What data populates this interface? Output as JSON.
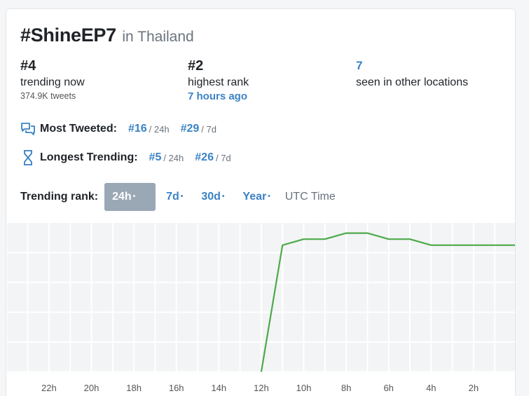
{
  "header": {
    "hashtag": "#ShineEP7",
    "location": "in Thailand"
  },
  "stats": {
    "current": {
      "value": "#4",
      "label": "trending now",
      "sub": "374.9K tweets"
    },
    "highest": {
      "value": "#2",
      "label": "highest rank",
      "sub": "7 hours ago"
    },
    "locations": {
      "value": "7",
      "label": "seen in other locations"
    }
  },
  "most_tweeted": {
    "label": "Most Tweeted:",
    "r24_value": "#16",
    "r24_period": "/ 24h",
    "r7_value": "#29",
    "r7_period": "/ 7d"
  },
  "longest_trending": {
    "label": "Longest Trending:",
    "r24_value": "#5",
    "r24_period": "/ 24h",
    "r7_value": "#26",
    "r7_period": "/ 7d"
  },
  "range": {
    "label": "Trending rank:",
    "options": [
      "24h",
      "7d",
      "30d",
      "Year"
    ],
    "selected": "24h",
    "utc_label": "UTC Time"
  },
  "icons": {
    "most_tweeted": "chat-bubbles-icon",
    "longest_trending": "hourglass-icon"
  },
  "colors": {
    "accent": "#3b82c4",
    "line": "#4caa4c",
    "active_range": "#9aa8b6"
  },
  "chart_data": {
    "type": "line",
    "x_tick_labels": [
      "22h",
      "20h",
      "18h",
      "16h",
      "14h",
      "12h",
      "10h",
      "8h",
      "6h",
      "4h",
      "2h"
    ],
    "series": [
      {
        "hours_ago": [
          12,
          11,
          10,
          9,
          8,
          7,
          6,
          5,
          4,
          3,
          2,
          1,
          0
        ],
        "rank": [
          25,
          4,
          3,
          3,
          2,
          2,
          3,
          3,
          4,
          4,
          4,
          4,
          4
        ]
      }
    ],
    "x_range_hours_ago": [
      24,
      0
    ],
    "grid": true
  }
}
